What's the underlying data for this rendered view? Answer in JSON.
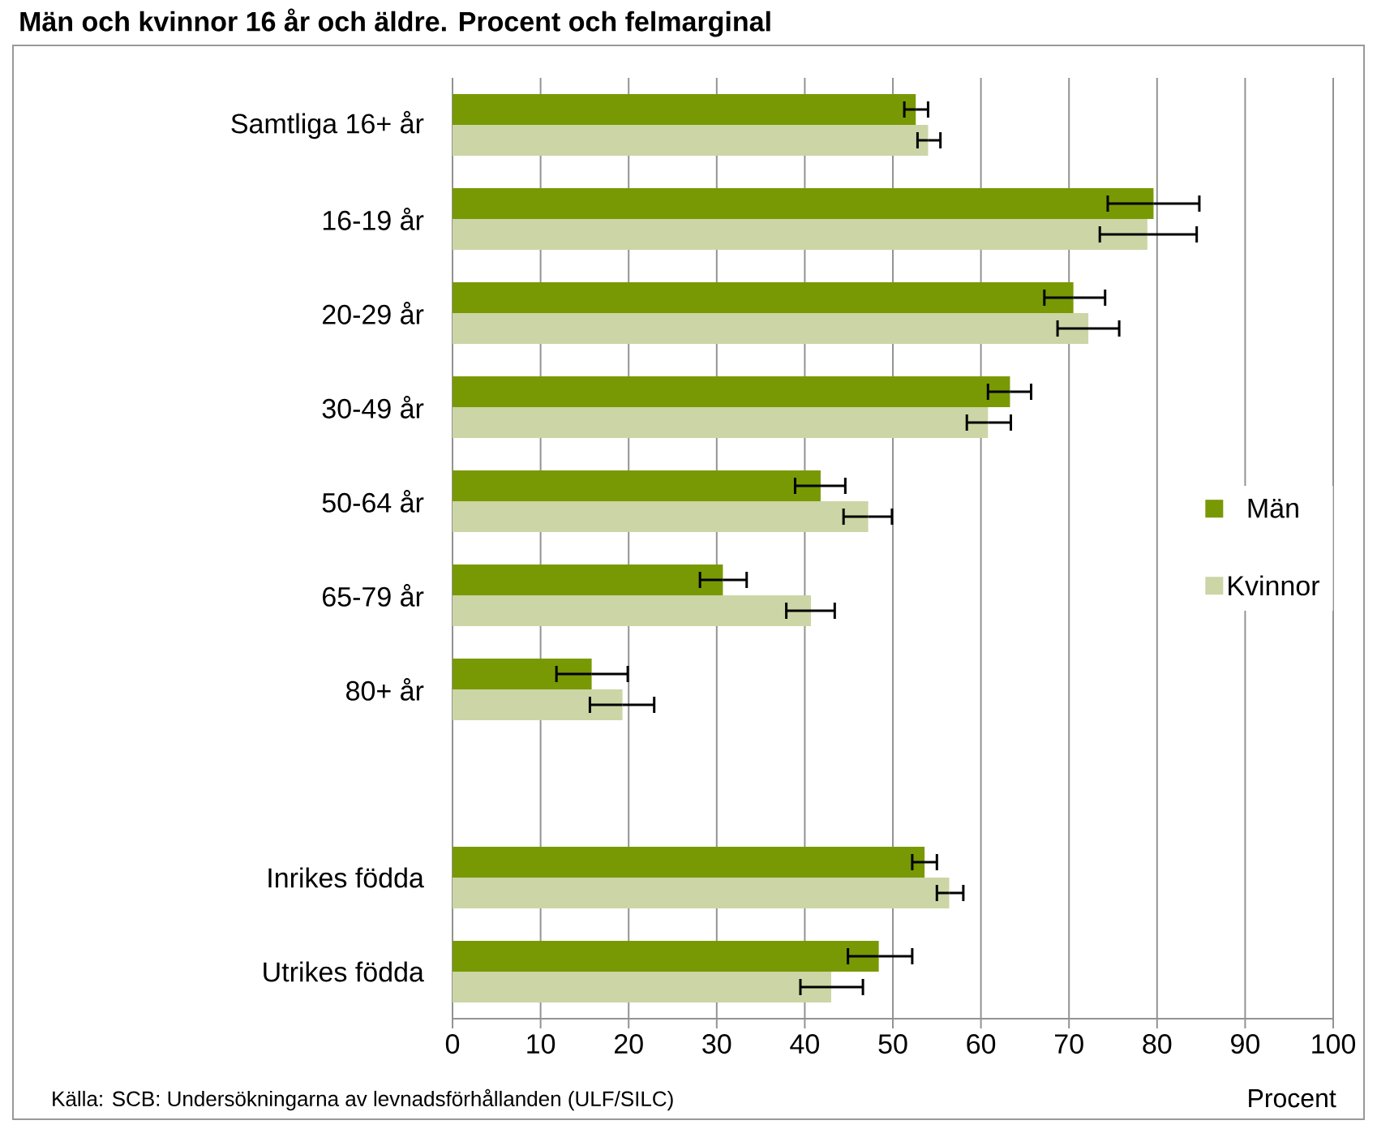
{
  "chart_data": {
    "type": "bar",
    "orientation": "horizontal",
    "title": "Män och kvinnor 16 år och äldre. Procent och felmarginal",
    "xlabel": "Procent",
    "categories": [
      "Samtliga 16+ år",
      "16-19 år",
      "20-29 år",
      "30-49 år",
      "50-64 år",
      "65-79 år",
      "80+ år",
      null,
      "Inrikes födda",
      "Utrikes födda"
    ],
    "series": [
      {
        "name": "Män",
        "color": "#789904",
        "values": [
          52.6,
          79.6,
          70.5,
          63.3,
          41.8,
          30.7,
          15.8,
          null,
          53.6,
          48.4
        ],
        "errors": [
          [
            51.3,
            54.0
          ],
          [
            74.4,
            84.8
          ],
          [
            67.2,
            74.1
          ],
          [
            60.8,
            65.7
          ],
          [
            38.9,
            44.6
          ],
          [
            28.1,
            33.4
          ],
          [
            11.8,
            19.9
          ],
          null,
          [
            52.2,
            55.0
          ],
          [
            44.9,
            52.2
          ]
        ]
      },
      {
        "name": "Kvinnor",
        "color": "#ccd5a5",
        "values": [
          54.0,
          78.9,
          72.2,
          60.8,
          47.2,
          40.7,
          19.3,
          null,
          56.4,
          43.0
        ],
        "errors": [
          [
            52.8,
            55.4
          ],
          [
            73.5,
            84.5
          ],
          [
            68.7,
            75.7
          ],
          [
            58.4,
            63.4
          ],
          [
            44.4,
            49.9
          ],
          [
            37.9,
            43.4
          ],
          [
            15.6,
            22.9
          ],
          null,
          [
            55.0,
            58.0
          ],
          [
            39.5,
            46.6
          ]
        ]
      }
    ],
    "xlim": [
      0,
      100
    ],
    "xticks": [
      0,
      10,
      20,
      30,
      40,
      50,
      60,
      70,
      80,
      90,
      100
    ],
    "grid": "x",
    "legend": "right",
    "annotations": [
      "Källa: SCB: Undersökningarna av levnadsförhållanden (ULF/SILC)"
    ]
  }
}
